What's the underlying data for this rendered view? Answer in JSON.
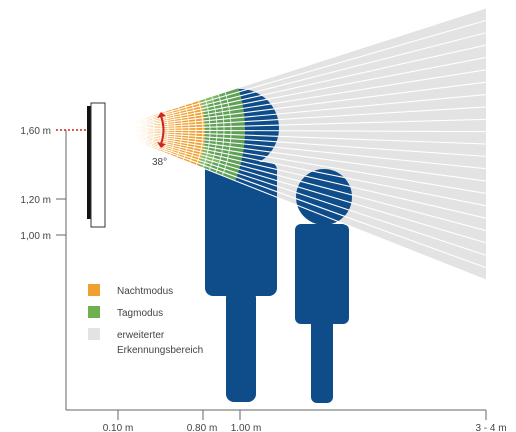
{
  "colors": {
    "night": "#F0A030",
    "day": "#6FB04E",
    "extended": "#E3E3E3",
    "person": "#0F4D8A",
    "axis": "#666666",
    "angle_arrow": "#D2231E",
    "text": "#444444"
  },
  "y_axis": {
    "labels": {
      "h160": "1,60 m",
      "h120": "1,20 m",
      "h100": "1,00 m"
    }
  },
  "x_axis": {
    "labels": {
      "d010": "0.10 m",
      "d080": "0.80 m",
      "d100": "1.00 m",
      "d34": "3 - 4 m"
    }
  },
  "angle": {
    "label": "38°"
  },
  "legend": {
    "night": "Nachtmodus",
    "day": "Tagmodus",
    "extended_line1": "erweiterter",
    "extended_line2": "Erkennungsbereich"
  }
}
